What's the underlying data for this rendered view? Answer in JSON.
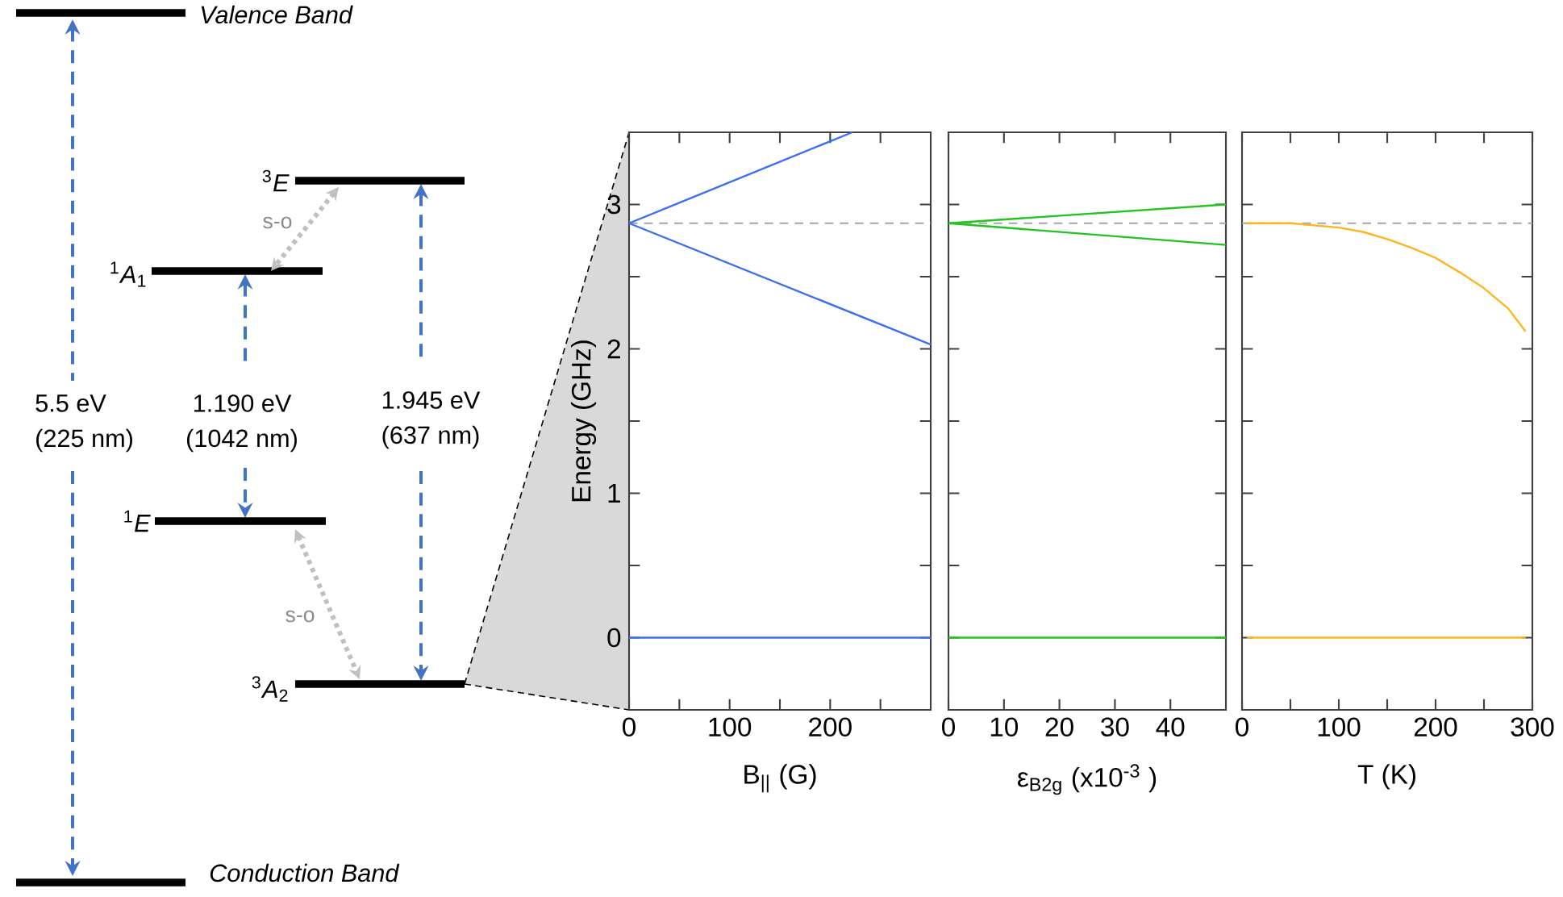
{
  "chart_data": [
    {
      "type": "other",
      "annotations": [
        "Valence Band",
        "Conduction Band",
        "$^{3}$*E*",
        "$^{1}$*A*$_{1}$",
        "$^{1}$*E*",
        "$^{3}$*A*$_{2}$",
        "s-o",
        "s-o",
        "5.5 eV",
        "(225 nm)",
        "1.190 eV",
        "(1042 nm)",
        "1.945 eV",
        "(637 nm)"
      ]
    },
    {
      "type": "line",
      "xlabel": "B$_{||}$ (G)",
      "ylabel": "Energy (GHz)",
      "xlim": [
        0,
        300
      ],
      "ylim": [
        -0.5,
        3.5
      ],
      "xticks": [
        0,
        100,
        200,
        {
          "value": 50,
          "label": null
        },
        {
          "value": 150,
          "label": null
        },
        {
          "value": 250,
          "label": null
        }
      ],
      "yticks": [
        0,
        1,
        2,
        3,
        {
          "value": 0.5,
          "label": null
        },
        {
          "value": 1.5,
          "label": null
        },
        {
          "value": 2.5,
          "label": null
        }
      ],
      "ref_lines": [
        {
          "axis": "y",
          "value": 2.87,
          "color": "#a6a6a6",
          "line_style": "dashed"
        }
      ],
      "series": [
        {
          "color": "#3b6ff0",
          "x": [
            0,
            222
          ],
          "values": [
            2.87,
            3.5
          ]
        },
        {
          "color": "#3b6ff0",
          "x": [
            0,
            300
          ],
          "values": [
            2.87,
            2.03
          ]
        },
        {
          "color": "#3b6ff0",
          "x": [
            0,
            300
          ],
          "values": [
            0,
            0
          ]
        }
      ]
    },
    {
      "type": "line",
      "xlabel": "ε$_{B2g}$ (x10$^{-3}$ )",
      "xlim": [
        0,
        50
      ],
      "ylim": [
        -0.5,
        3.5
      ],
      "tick_labels": "x",
      "xticks": [
        0,
        10,
        20,
        30,
        40
      ],
      "yticks": [
        0,
        1,
        2,
        3,
        {
          "value": 0.5,
          "label": null
        },
        {
          "value": 1.5,
          "label": null
        },
        {
          "value": 2.5,
          "label": null
        }
      ],
      "ref_lines": [
        {
          "axis": "y",
          "value": 2.87,
          "color": "#a6a6a6",
          "line_style": "dashed"
        }
      ],
      "series": [
        {
          "color": "#22c422",
          "x": [
            0,
            50
          ],
          "values": [
            2.87,
            3.0
          ]
        },
        {
          "color": "#22c422",
          "x": [
            0,
            50
          ],
          "values": [
            2.87,
            2.72
          ]
        },
        {
          "color": "#22c422",
          "x": [
            0,
            50
          ],
          "values": [
            0,
            0
          ]
        }
      ]
    },
    {
      "type": "line",
      "xlabel": "T (K)",
      "xlim": [
        0,
        300
      ],
      "ylim": [
        -0.5,
        3.5
      ],
      "tick_labels": "x",
      "xticks": [
        0,
        100,
        200,
        300,
        {
          "value": 50,
          "label": null
        },
        {
          "value": 150,
          "label": null
        },
        {
          "value": 250,
          "label": null
        }
      ],
      "yticks": [
        0,
        1,
        2,
        3,
        {
          "value": 0.5,
          "label": null
        },
        {
          "value": 1.5,
          "label": null
        },
        {
          "value": 2.5,
          "label": null
        }
      ],
      "ref_lines": [
        {
          "axis": "y",
          "value": 2.87,
          "color": "#a6a6a6",
          "line_style": "dashed"
        }
      ],
      "series": [
        {
          "color": "#ffb51f",
          "x": [
            5,
            50,
            100,
            125,
            150,
            175,
            200,
            225,
            250,
            275,
            293
          ],
          "values": [
            2.87,
            2.87,
            2.84,
            2.81,
            2.76,
            2.7,
            2.63,
            2.53,
            2.42,
            2.28,
            2.12
          ]
        },
        {
          "color": "#ffb51f",
          "x": [
            5,
            293
          ],
          "values": [
            0,
            0
          ]
        }
      ]
    }
  ]
}
